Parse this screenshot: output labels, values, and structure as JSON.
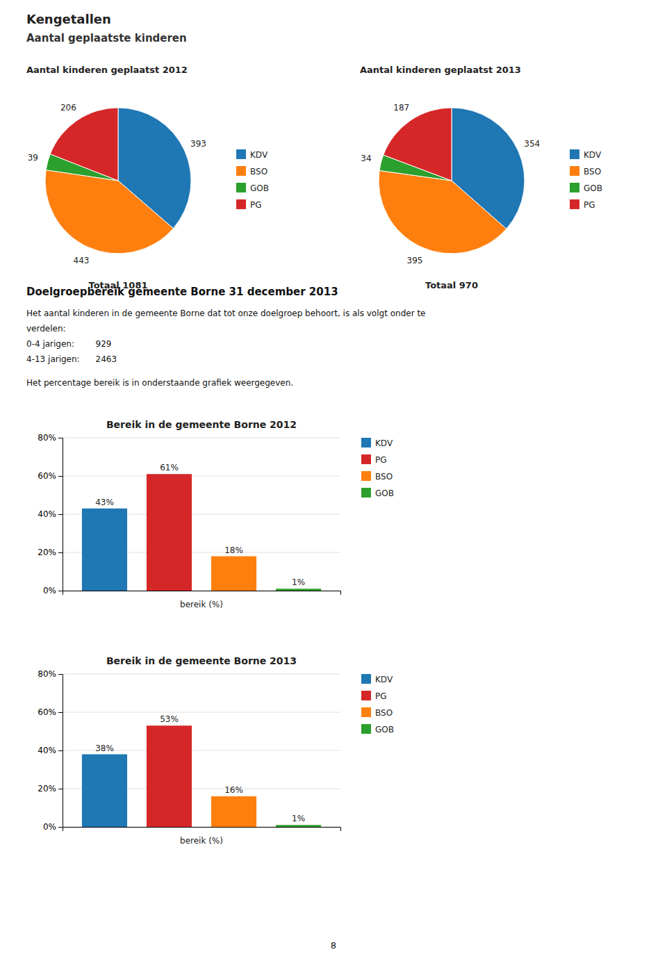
{
  "title": "Kengetallen",
  "subtitle": "Aantal geplaatste kinderen",
  "annotations": [
    "Doelgroepbereik gemeente Borne 31 december 2013",
    "Het aantal kinderen in de gemeente Borne dat tot onze doelgroep behoort, is als volgt onder te",
    "verdelen:",
    "0-4 jarigen:        929",
    "4-13 jarigen:      2463",
    "Het percentage bereik is in onderstaande grafiek weergegeven.",
    "8"
  ],
  "chart_data": [
    {
      "type": "pie",
      "title": "Aantal kinderen geplaatst 2012",
      "categories": [
        "KDV",
        "BSO",
        "GOB",
        "PG"
      ],
      "values": [
        393,
        443,
        39,
        206
      ],
      "data_labels": true,
      "legend": "right",
      "annotations": [
        "Totaal 1081"
      ]
    },
    {
      "type": "pie",
      "title": "Aantal kinderen geplaatst 2013",
      "categories": [
        "KDV",
        "BSO",
        "GOB",
        "PG"
      ],
      "values": [
        354,
        395,
        34,
        187
      ],
      "data_labels": true,
      "legend": "right",
      "annotations": [
        "Totaal 970"
      ]
    },
    {
      "type": "bar",
      "title": "Bereik in de gemeente Borne 2012",
      "categories": [
        "KDV",
        "PG",
        "BSO",
        "GOB"
      ],
      "values": [
        43,
        61,
        18,
        1
      ],
      "value_labels": [
        "43%",
        "61%",
        "18%",
        "1%"
      ],
      "data_labels": true,
      "xlabel": "bereik (%)",
      "ylim": [
        0,
        80
      ],
      "yticks": [
        {
          "value": 0,
          "label": "0%"
        },
        {
          "value": 20,
          "label": "20%"
        },
        {
          "value": 40,
          "label": "40%"
        },
        {
          "value": 60,
          "label": "60%"
        },
        {
          "value": 80,
          "label": "80%"
        }
      ],
      "grid": true,
      "legend": "right",
      "tick_labels": "y"
    },
    {
      "type": "bar",
      "title": "Bereik in de gemeente Borne 2013",
      "categories": [
        "KDV",
        "PG",
        "BSO",
        "GOB"
      ],
      "values": [
        38,
        53,
        16,
        1
      ],
      "value_labels": [
        "38%",
        "53%",
        "16%",
        "1%"
      ],
      "data_labels": true,
      "xlabel": "bereik (%)",
      "ylim": [
        0,
        80
      ],
      "yticks": [
        {
          "value": 0,
          "label": "0%"
        },
        {
          "value": 20,
          "label": "20%"
        },
        {
          "value": 40,
          "label": "40%"
        },
        {
          "value": 60,
          "label": "60%"
        },
        {
          "value": 80,
          "label": "80%"
        }
      ],
      "grid": true,
      "legend": "right",
      "tick_labels": "y"
    }
  ]
}
